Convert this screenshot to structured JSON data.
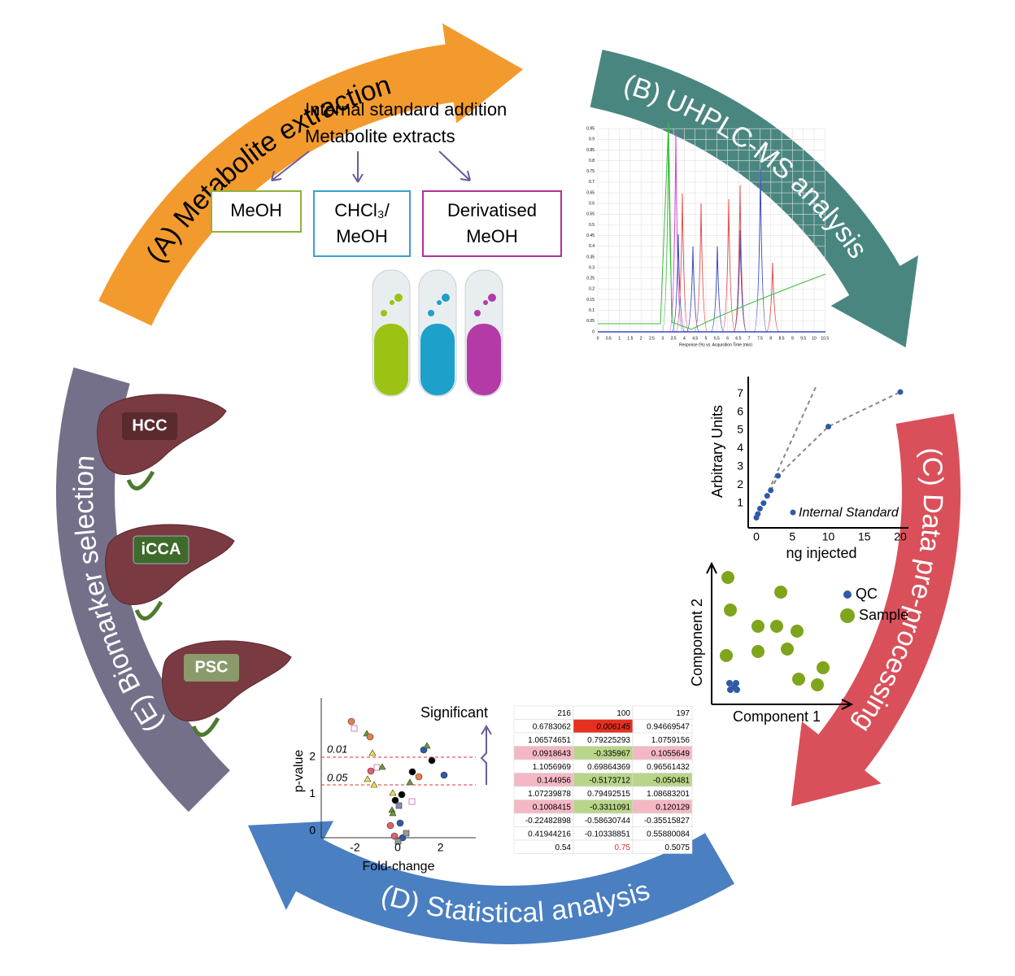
{
  "stages": [
    "(A) Metabolite extraction",
    "(B) UHPLC-MS analysis",
    "(C) Data pre-processing",
    "(D) Statistical analysis",
    "(E) Biomarker selection"
  ],
  "extraction": {
    "lines": [
      "Internal standard addition",
      "Metabolite extracts"
    ],
    "solvents": [
      [
        "MeOH"
      ],
      [
        "CHCl₃/",
        "MeOH"
      ],
      [
        "Derivatised",
        "MeOH"
      ]
    ]
  },
  "chromatogram": {
    "x_label": "Response (%) vs. Acquisition Time (min)",
    "xticks": [
      "0",
      "0.5",
      "1",
      "1.5",
      "2",
      "2.5",
      "3",
      "3.5",
      "4",
      "4.5",
      "5",
      "5.5",
      "6",
      "6.5",
      "7",
      "7.5",
      "8",
      "8.5",
      "9",
      "9.5",
      "10",
      "10.5"
    ],
    "yticks": [
      "0",
      "0.05",
      "0.1",
      "0.15",
      "0.2",
      "0.25",
      "0.3",
      "0.35",
      "0.4",
      "0.45",
      "0.5",
      "0.55",
      "0.6",
      "0.65",
      "0.7",
      "0.75",
      "0.8",
      "0.85",
      "0.9",
      "0.95"
    ]
  },
  "calibration": {
    "y_label": "Arbitrary Units",
    "x_label": "ng injected",
    "legend": "Internal Standard",
    "xlim": [
      0,
      20
    ],
    "ylim": [
      0,
      7.5
    ],
    "xticks": [
      0,
      5,
      10,
      15,
      20
    ],
    "yticks": [
      1,
      2,
      3,
      4,
      5,
      6,
      7
    ],
    "points": {
      "x": [
        0,
        0.2,
        0.5,
        1,
        1.5,
        2,
        3,
        10,
        20
      ],
      "y": [
        0.2,
        0.4,
        0.7,
        1.0,
        1.4,
        1.7,
        2.5,
        5.2,
        7.1
      ]
    }
  },
  "pca": {
    "y_label": "Component 2",
    "x_label": "Component 1",
    "legend": [
      "QC",
      "Sample"
    ]
  },
  "biomarkers": [
    "HCC",
    "iCCA",
    "PSC"
  ],
  "volcano": {
    "y_label": "p-value",
    "x_label": "Fold-change",
    "yticks": [
      0,
      1,
      2
    ],
    "xticks": [
      -2,
      0,
      2
    ],
    "thresholds": [
      "0.01",
      "0.05"
    ],
    "annotation": "Significant"
  },
  "table": {
    "header": [
      "216",
      "100",
      "197"
    ],
    "rows": [
      [
        "0.6783062",
        "0.006145",
        "0.94669547"
      ],
      [
        "1.06574651",
        "0.79225293",
        "1.0759156"
      ],
      [
        "0.0918643",
        "-0.335967",
        "0.1055649"
      ],
      [
        "1.1056969",
        "0.69864369",
        "0.96561432"
      ],
      [
        "0.144956",
        "-0.5173712",
        "-0.050481"
      ],
      [
        "1.07239878",
        "0.79492515",
        "1.08683201"
      ],
      [
        "0.1008415",
        "-0.3311091",
        "0.120129"
      ],
      [
        "-0.22482898",
        "-0.58630744",
        "-0.35515827"
      ],
      [
        "0.41944216",
        "-0.10338851",
        "0.55880084"
      ],
      [
        "0.54",
        "0.75",
        "0.5075"
      ]
    ]
  }
}
